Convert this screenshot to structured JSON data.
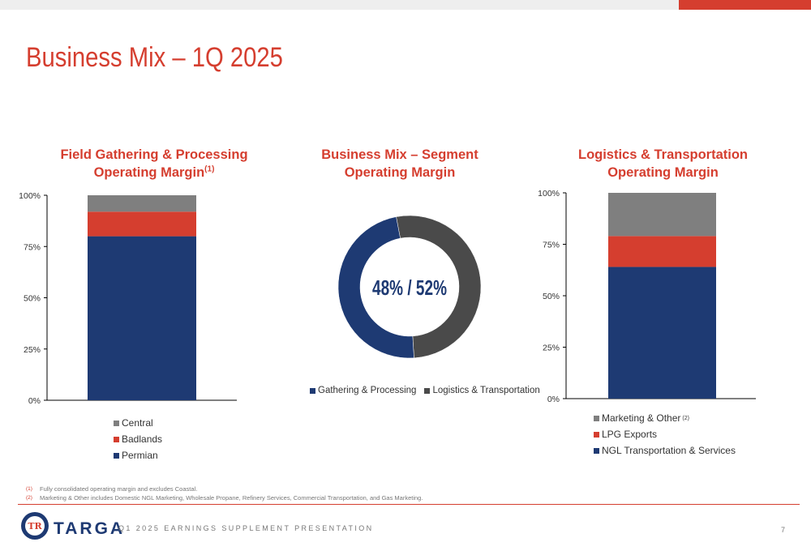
{
  "page": {
    "title": "Business Mix – 1Q 2025",
    "page_number": "7"
  },
  "colors": {
    "accent_red": "#d53e2f",
    "navy": "#1e3a73",
    "gray": "#7f7f7f",
    "dark_gray": "#4a4a4a"
  },
  "chart_data": [
    {
      "type": "bar",
      "stacked": true,
      "title": "Field Gathering & Processing Operating Margin",
      "title_footnote": "(1)",
      "categories": [
        ""
      ],
      "series": [
        {
          "name": "Permian",
          "values": [
            0.8
          ],
          "color": "#1e3a73"
        },
        {
          "name": "Badlands",
          "values": [
            0.12
          ],
          "color": "#d53e2f"
        },
        {
          "name": "Central",
          "values": [
            0.08
          ],
          "color": "#7f7f7f"
        }
      ],
      "ylim": [
        0,
        1
      ],
      "yticks": [
        "0%",
        "25%",
        "50%",
        "75%",
        "100%"
      ],
      "legend_position": "bottom"
    },
    {
      "type": "pie",
      "donut": true,
      "title": "Business Mix – Segment Operating Margin",
      "center_label": "48% / 52%",
      "slices": [
        {
          "name": "Gathering & Processing",
          "value": 48,
          "color": "#1e3a73"
        },
        {
          "name": "Logistics & Transportation",
          "value": 52,
          "color": "#4a4a4a"
        }
      ],
      "legend_position": "bottom"
    },
    {
      "type": "bar",
      "stacked": true,
      "title": "Logistics & Transportation Operating Margin",
      "categories": [
        ""
      ],
      "series": [
        {
          "name": "NGL Transportation & Services",
          "values": [
            0.64
          ],
          "color": "#1e3a73"
        },
        {
          "name": "LPG Exports",
          "values": [
            0.15
          ],
          "color": "#d53e2f"
        },
        {
          "name": "Marketing & Other",
          "footnote": "(2)",
          "values": [
            0.21
          ],
          "color": "#7f7f7f"
        }
      ],
      "ylim": [
        0,
        1
      ],
      "yticks": [
        "0%",
        "25%",
        "50%",
        "75%",
        "100%"
      ],
      "legend_position": "bottom"
    }
  ],
  "footnotes": [
    {
      "mark": "(1)",
      "text": "Fully consolidated operating margin and excludes Coastal."
    },
    {
      "mark": "(2)",
      "text": "Marketing & Other includes Domestic NGL Marketing, Wholesale Propane, Refinery Services, Commercial Transportation, and Gas Marketing."
    }
  ],
  "footer": {
    "brand": "TARGA",
    "logo_text": "TR",
    "text": "Q1 2025 EARNINGS SUPPLEMENT PRESENTATION"
  }
}
